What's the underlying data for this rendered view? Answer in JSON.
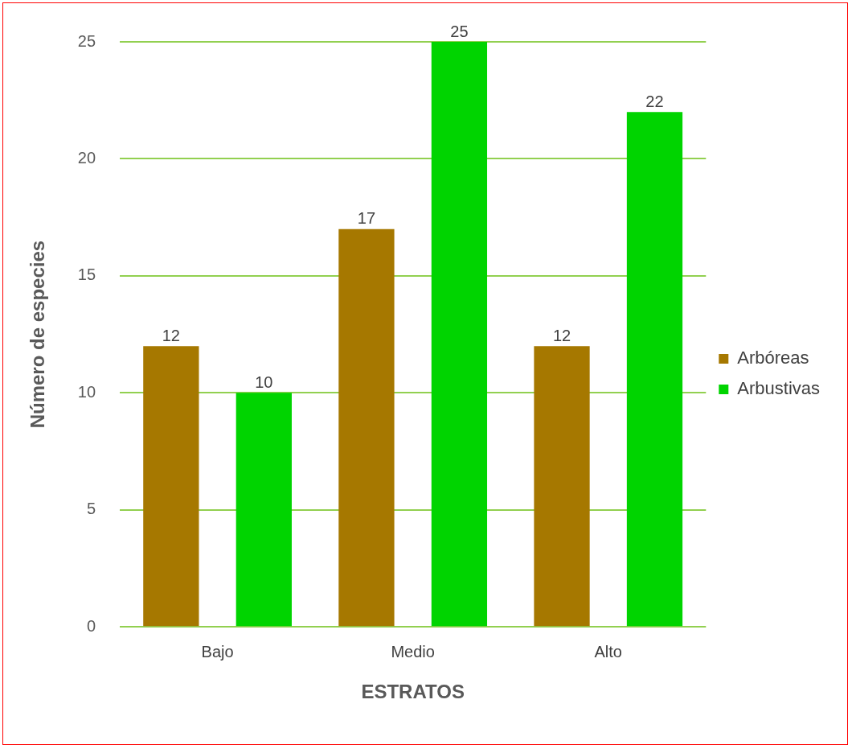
{
  "chart_data": {
    "type": "bar",
    "xlabel": "ESTRATOS",
    "ylabel": "Número de especies",
    "categories": [
      "Bajo",
      "Medio",
      "Alto"
    ],
    "series": [
      {
        "name": "Arbóreas",
        "color": "#a67800",
        "values": [
          12,
          17,
          12
        ]
      },
      {
        "name": "Arbustivas",
        "color": "#00d400",
        "values": [
          10,
          25,
          22
        ]
      }
    ],
    "ylim": [
      0,
      25
    ],
    "yticks": [
      0,
      5,
      10,
      15,
      20,
      25
    ],
    "grid": "y",
    "legend": "right",
    "data_labels": true
  }
}
